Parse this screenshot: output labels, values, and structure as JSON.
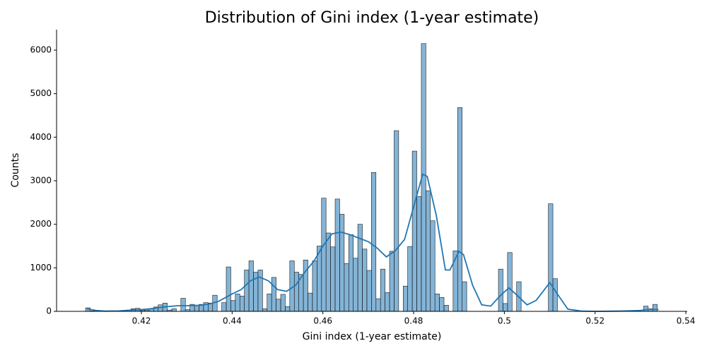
{
  "chart_data": {
    "type": "histogram",
    "title": "Distribution of Gini index (1-year estimate)",
    "x_label": "Gini index (1-year estimate)",
    "y_label": "Counts",
    "bins": [
      0.4077,
      0.4087,
      0.4097,
      0.4107,
      0.4117,
      0.4127,
      0.4137,
      0.4147,
      0.4157,
      0.4167,
      0.4177,
      0.4187,
      0.4197,
      0.4207,
      0.4217,
      0.4227,
      0.4237,
      0.4247,
      0.4257,
      0.4267,
      0.4277,
      0.4287,
      0.4297,
      0.4307,
      0.4317,
      0.4327,
      0.4337,
      0.4347,
      0.4357,
      0.4367,
      0.4377,
      0.4387,
      0.4397,
      0.4407,
      0.4417,
      0.4427,
      0.4437,
      0.4447,
      0.4457,
      0.4467,
      0.4477,
      0.4487,
      0.4497,
      0.4507,
      0.4517,
      0.4527,
      0.4537,
      0.4547,
      0.4557,
      0.4567,
      0.4577,
      0.4587,
      0.4597,
      0.4607,
      0.4617,
      0.4627,
      0.4637,
      0.4647,
      0.4657,
      0.4667,
      0.4677,
      0.4687,
      0.4697,
      0.4707,
      0.4717,
      0.4727,
      0.4737,
      0.4747,
      0.4757,
      0.4767,
      0.4777,
      0.4787,
      0.4797,
      0.4807,
      0.4817,
      0.4827,
      0.4837,
      0.4847,
      0.4857,
      0.4867,
      0.4877,
      0.4887,
      0.4897,
      0.4907,
      0.4917,
      0.4927,
      0.4937,
      0.4947,
      0.4957,
      0.4967,
      0.4977,
      0.4987,
      0.4997,
      0.5007,
      0.5017,
      0.5027,
      0.5037,
      0.5047,
      0.5057,
      0.5067,
      0.5077,
      0.5087,
      0.5097,
      0.5107,
      0.5117,
      0.5127,
      0.5137,
      0.5147,
      0.5157,
      0.5167,
      0.5177,
      0.5187,
      0.5197,
      0.5207,
      0.5217,
      0.5227,
      0.5237,
      0.5247,
      0.5257,
      0.5267,
      0.5277,
      0.5287,
      0.5297,
      0.5307,
      0.5317,
      0.5327,
      0.5337
    ],
    "counts": [
      80,
      10,
      5,
      0,
      0,
      5,
      5,
      10,
      20,
      30,
      60,
      70,
      20,
      30,
      60,
      100,
      150,
      190,
      30,
      60,
      0,
      300,
      40,
      160,
      130,
      160,
      200,
      190,
      370,
      0,
      200,
      1020,
      250,
      400,
      350,
      950,
      1160,
      900,
      950,
      60,
      400,
      780,
      280,
      390,
      110,
      1160,
      900,
      850,
      1180,
      420,
      1160,
      1500,
      2600,
      1800,
      1480,
      2580,
      2230,
      1100,
      1760,
      1220,
      2000,
      1430,
      940,
      3190,
      290,
      970,
      430,
      1380,
      4150,
      0,
      580,
      1490,
      3680,
      2640,
      6150,
      2770,
      2080,
      400,
      320,
      140,
      0,
      1390,
      4680,
      680,
      0,
      0,
      0,
      0,
      0,
      0,
      0,
      970,
      180,
      1350,
      0,
      680,
      0,
      0,
      0,
      0,
      0,
      0,
      2470,
      750,
      0,
      0,
      0,
      0,
      0,
      0,
      0,
      0,
      0,
      0,
      0,
      0,
      0,
      0,
      0,
      0,
      0,
      0,
      0,
      120,
      60,
      160
    ],
    "color": "rgba(31,119,180,0.55)",
    "edgecolor": "#1a1a1a",
    "kde": {
      "x": [
        0.408,
        0.41,
        0.412,
        0.415,
        0.418,
        0.42,
        0.422,
        0.425,
        0.428,
        0.43,
        0.433,
        0.435,
        0.437,
        0.44,
        0.442,
        0.444,
        0.446,
        0.448,
        0.45,
        0.452,
        0.454,
        0.456,
        0.458,
        0.46,
        0.462,
        0.464,
        0.466,
        0.468,
        0.47,
        0.472,
        0.474,
        0.476,
        0.478,
        0.48,
        0.482,
        0.483,
        0.485,
        0.487,
        0.488,
        0.49,
        0.491,
        0.493,
        0.495,
        0.497,
        0.499,
        0.501,
        0.503,
        0.505,
        0.507,
        0.51,
        0.512,
        0.514,
        0.517,
        0.52,
        0.525,
        0.53,
        0.532,
        0.534
      ],
      "values": [
        60,
        20,
        5,
        10,
        30,
        40,
        60,
        100,
        130,
        130,
        140,
        170,
        230,
        400,
        500,
        700,
        790,
        700,
        500,
        460,
        600,
        900,
        1150,
        1500,
        1780,
        1820,
        1760,
        1680,
        1600,
        1450,
        1250,
        1400,
        1650,
        2400,
        3150,
        3100,
        2200,
        950,
        950,
        1380,
        1300,
        600,
        150,
        120,
        350,
        540,
        350,
        150,
        250,
        660,
        350,
        50,
        5,
        0,
        5,
        20,
        50,
        40
      ],
      "color": "#1f77b4"
    },
    "xlim": [
      0.4013,
      0.5403
    ],
    "xticks": [
      0.42,
      0.44,
      0.46,
      0.48,
      0.5,
      0.52,
      0.54
    ],
    "ylim": [
      0,
      6470
    ],
    "yticks": [
      0,
      1000,
      2000,
      3000,
      4000,
      5000,
      6000
    ]
  }
}
